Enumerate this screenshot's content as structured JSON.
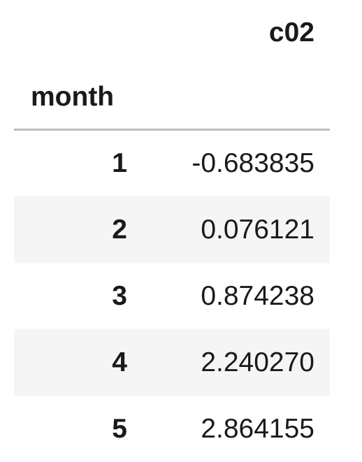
{
  "table": {
    "column_header": "c02",
    "index_name": "month",
    "rows": [
      {
        "index": "1",
        "c02": "-0.683835"
      },
      {
        "index": "2",
        "c02": "0.076121"
      },
      {
        "index": "3",
        "c02": "0.874238"
      },
      {
        "index": "4",
        "c02": "2.240270"
      },
      {
        "index": "5",
        "c02": "2.864155"
      }
    ]
  }
}
